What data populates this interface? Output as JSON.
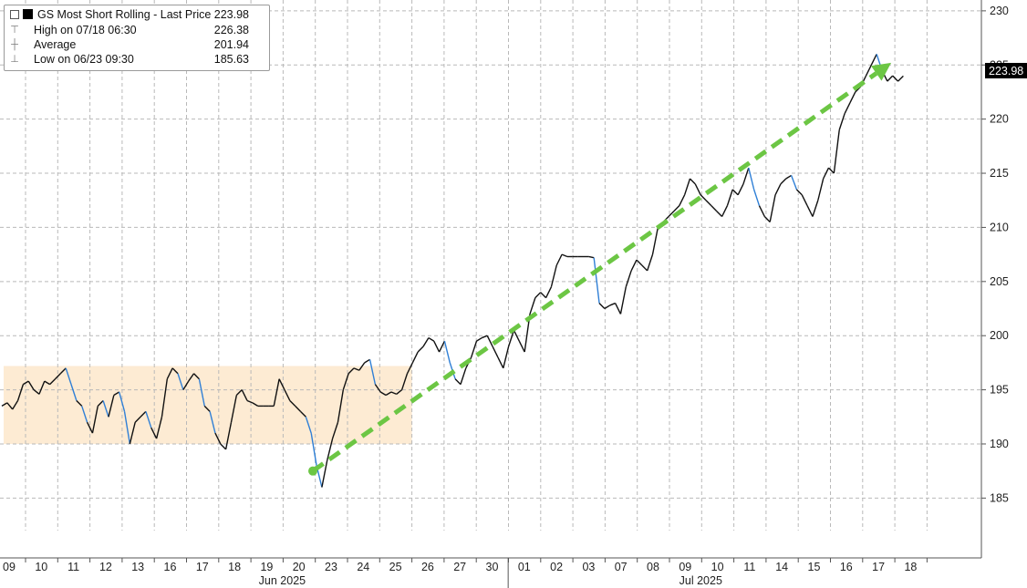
{
  "legend": {
    "title": "GS Most Short Rolling - Last Price",
    "last_price": "223.98",
    "high_label": "High on 07/18 06:30",
    "high_value": "226.38",
    "avg_label": "Average",
    "avg_value": "201.94",
    "low_label": "Low on 06/23 09:30",
    "low_value": "185.63"
  },
  "price_tag": "223.98",
  "colors": {
    "price_line": "#111111",
    "price_down": "#2f7fd6",
    "trend_arrow": "#6cc644",
    "range_box": "#fdebd3",
    "grid": "#b9b9b9",
    "price_tag_bg": "#000000"
  },
  "chart_data": {
    "type": "line",
    "title": "GS Most Short Rolling - Last Price",
    "ylim": [
      182,
      231
    ],
    "y_ticks": [
      185,
      190,
      195,
      200,
      205,
      210,
      215,
      220,
      225,
      230
    ],
    "x_ticks": [
      "09",
      "10",
      "11",
      "12",
      "13",
      "16",
      "17",
      "18",
      "19",
      "20",
      "23",
      "24",
      "25",
      "26",
      "27",
      "30",
      "01",
      "02",
      "03",
      "07",
      "08",
      "09",
      "10",
      "11",
      "14",
      "15",
      "16",
      "17",
      "18"
    ],
    "month_labels": [
      {
        "label": "Jun 2025",
        "at": "19"
      },
      {
        "label": "Jul 2025",
        "at": "09"
      }
    ],
    "series": [
      {
        "values": [
          193.5,
          193.8,
          193.2,
          194.0,
          195.5,
          195.8,
          195.0,
          194.6,
          195.8,
          195.5,
          196.0,
          196.5,
          197.0,
          195.5,
          194.0,
          193.5,
          192.0,
          191.0,
          193.5,
          194.0,
          192.5,
          194.5,
          194.8,
          193.0,
          190.0,
          192.0,
          192.5,
          193.0,
          191.5,
          190.5,
          192.5,
          196.0,
          197.0,
          196.5,
          195.0,
          195.8,
          196.5,
          196.0,
          193.5,
          193.0,
          191.0,
          190.0,
          189.5,
          192.0,
          194.5,
          195.0,
          194.0,
          193.8,
          193.5,
          193.5,
          193.5,
          193.5,
          196.0,
          195.0,
          194.0,
          193.5,
          193.0,
          192.5,
          191.0,
          188.0,
          186.0,
          188.5,
          190.5,
          192.0,
          195.0,
          196.5,
          197.0,
          196.8,
          197.5,
          197.8,
          195.5,
          194.8,
          194.5,
          194.8,
          194.6,
          195.0,
          196.5,
          197.5,
          198.5,
          199.0,
          199.8,
          199.5,
          198.5,
          199.5,
          197.5,
          196.0,
          195.5,
          197.0,
          198.0,
          199.5,
          199.8,
          200.0,
          199.0,
          198.0,
          197.0,
          199.0,
          200.5,
          199.5,
          198.5,
          202.0,
          203.5,
          204.0,
          203.5,
          204.5,
          206.5,
          207.5,
          207.3,
          207.3,
          207.3,
          207.3,
          207.3,
          207.2,
          203.0,
          202.5,
          202.8,
          203.0,
          202.0,
          204.5,
          206.0,
          207.0,
          206.5,
          206.0,
          207.5,
          210.0,
          210.5,
          211.0,
          211.5,
          212.0,
          213.0,
          214.5,
          214.0,
          213.0,
          212.5,
          212.0,
          211.5,
          211.0,
          212.0,
          213.5,
          213.0,
          214.0,
          215.5,
          213.5,
          212.0,
          211.0,
          210.5,
          213.0,
          214.0,
          214.5,
          214.8,
          213.5,
          213.0,
          212.0,
          211.0,
          212.5,
          214.5,
          215.5,
          215.0,
          219.0,
          220.5,
          221.5,
          222.5,
          223.0,
          224.0,
          225.0,
          226.0,
          224.5,
          223.5,
          224.0,
          223.5,
          223.98
        ]
      }
    ],
    "range_box": {
      "x_start": "09",
      "x_end": "25",
      "y_low": 190,
      "y_high": 197.2
    },
    "trend_arrow": {
      "x_start": "23",
      "y_start": 187.5,
      "x_end": "17",
      "y_end": 225.2
    }
  }
}
